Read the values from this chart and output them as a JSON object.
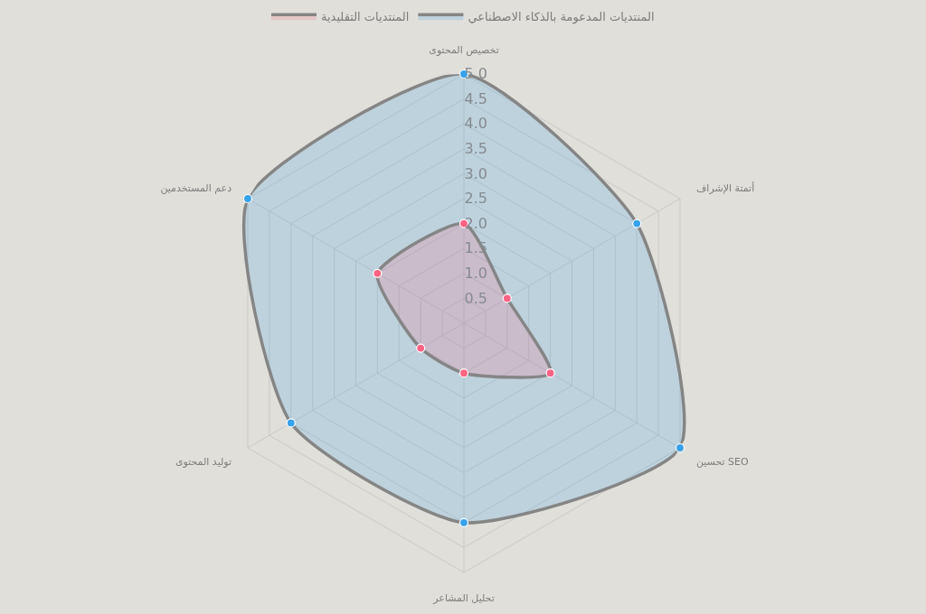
{
  "chart_data": {
    "type": "radar",
    "categories": [
      "تخصيص المحتوى",
      "أتمتة الإشراف",
      "تحسين SEO",
      "تحليل المشاعر",
      "توليد المحتوى",
      "دعم المستخدمين"
    ],
    "series": [
      {
        "name": "المنتديات المدعومة بالذكاء الاصطناعي",
        "color": "#36a2eb",
        "values": [
          5,
          4,
          5,
          4,
          4,
          5
        ]
      },
      {
        "name": "المنتديات التقليدية",
        "color": "#ff6384",
        "values": [
          2,
          1,
          2,
          1,
          1,
          2
        ]
      }
    ],
    "ylim": [
      0,
      5
    ],
    "yticks": [
      0.5,
      {
        "value": 1,
        "label": "1.0"
      },
      1.5,
      {
        "value": 2,
        "label": "2.0"
      },
      2.5,
      {
        "value": 3,
        "label": "3.0"
      },
      3.5,
      {
        "value": 4,
        "label": "4.0"
      },
      4.5,
      {
        "value": 5,
        "label": "5.0"
      }
    ],
    "legend": "top",
    "marker": "circle",
    "grid": true
  }
}
